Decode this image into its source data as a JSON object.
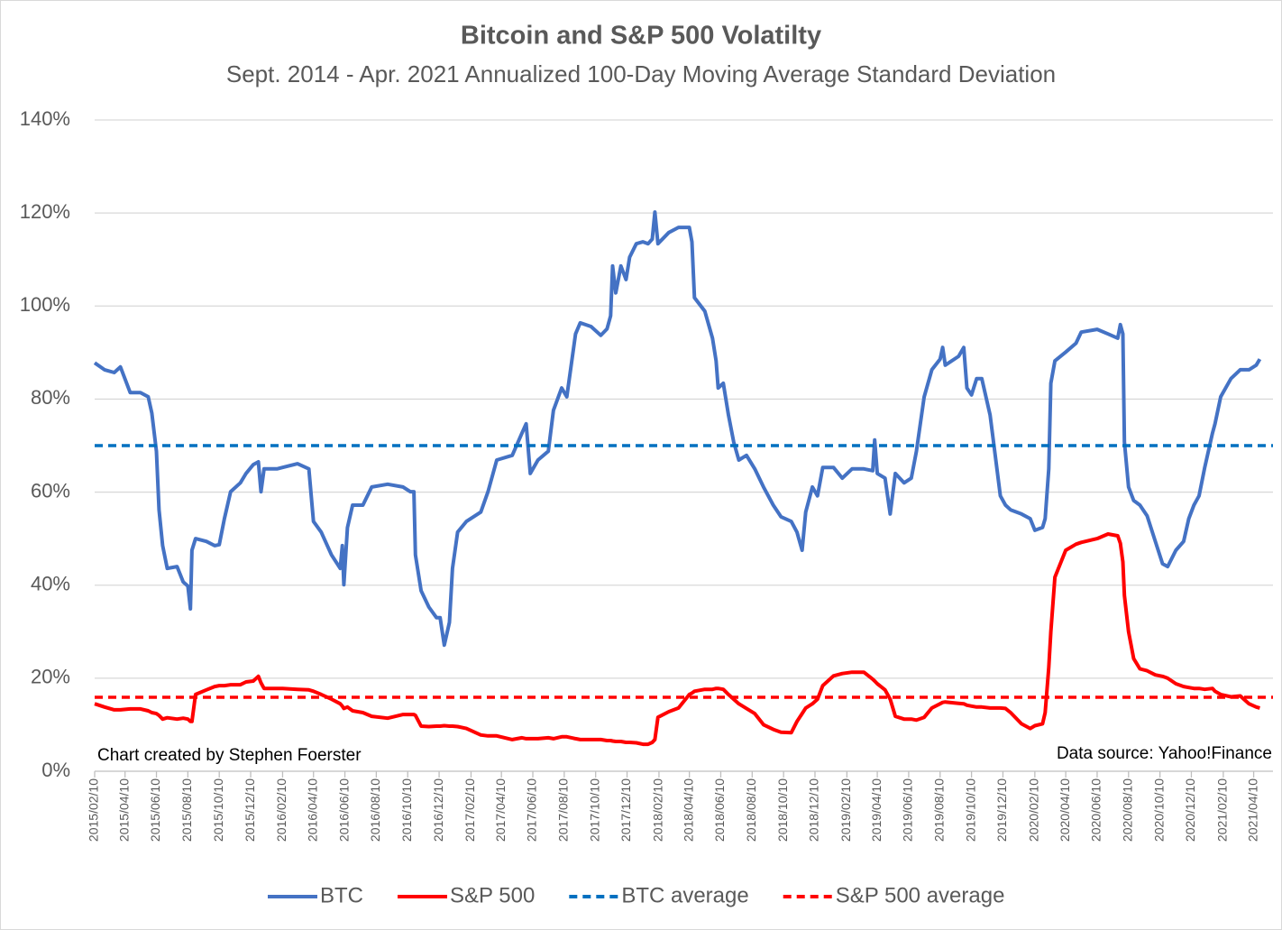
{
  "chart_data": {
    "type": "line",
    "title": "Bitcoin and S&P 500 Volatilty",
    "subtitle": "Sept. 2014 - Apr. 2021 Annualized 100-Day Moving Average Standard Deviation",
    "annotations": [
      "Chart created by Stephen Foerster",
      "Data source: Yahoo!Finance"
    ],
    "grid": true,
    "legend": "bottom",
    "xlim": [
      "2015/02/10",
      "2021/04/23"
    ],
    "xticks": [
      "2015/02/10",
      "2015/04/10",
      "2015/06/10",
      "2015/08/10",
      "2015/10/10",
      "2015/12/10",
      "2016/02/10",
      "2016/04/10",
      "2016/06/10",
      "2016/08/10",
      "2016/10/10",
      "2016/12/10",
      "2017/02/10",
      "2017/04/10",
      "2017/06/10",
      "2017/08/10",
      "2017/10/10",
      "2017/12/10",
      "2018/02/10",
      "2018/04/10",
      "2018/06/10",
      "2018/08/10",
      "2018/10/10",
      "2018/12/10",
      "2019/02/10",
      "2019/04/10",
      "2019/06/10",
      "2019/08/10",
      "2019/10/10",
      "2019/12/10",
      "2020/02/10",
      "2020/04/10",
      "2020/06/10",
      "2020/08/10",
      "2020/10/10",
      "2020/12/10",
      "2021/02/10",
      "2021/04/10"
    ],
    "ylim": [
      0,
      140
    ],
    "yticks": [
      {
        "value": 0,
        "label": "0%"
      },
      {
        "value": 20,
        "label": "20%"
      },
      {
        "value": 40,
        "label": "40%"
      },
      {
        "value": 60,
        "label": "60%"
      },
      {
        "value": 80,
        "label": "80%"
      },
      {
        "value": 100,
        "label": "100%"
      },
      {
        "value": 120,
        "label": "120%"
      },
      {
        "value": 140,
        "label": "140%"
      }
    ],
    "x": [
      "2015/02/10",
      "2015/03/01",
      "2015/03/20",
      "2015/04/01",
      "2015/04/20",
      "2015/05/10",
      "2015/05/25",
      "2015/06/01",
      "2015/06/10",
      "2015/06/15",
      "2015/06/22",
      "2015/07/01",
      "2015/07/20",
      "2015/08/01",
      "2015/08/10",
      "2015/08/15",
      "2015/08/18",
      "2015/08/25",
      "2015/09/15",
      "2015/10/01",
      "2015/10/10",
      "2015/10/20",
      "2015/11/01",
      "2015/11/20",
      "2015/12/01",
      "2015/12/15",
      "2015/12/25",
      "2015/12/30",
      "2016/01/05",
      "2016/01/30",
      "2016/02/10",
      "2016/03/10",
      "2016/04/01",
      "2016/04/10",
      "2016/04/25",
      "2016/05/15",
      "2016/06/01",
      "2016/06/05",
      "2016/06/08",
      "2016/06/15",
      "2016/06/25",
      "2016/07/15",
      "2016/08/01",
      "2016/09/01",
      "2016/10/01",
      "2016/10/15",
      "2016/10/22",
      "2016/10/25",
      "2016/11/05",
      "2016/11/20",
      "2016/12/05",
      "2016/12/12",
      "2016/12/20",
      "2016/12/30",
      "2017/01/05",
      "2017/01/15",
      "2017/02/01",
      "2017/03/01",
      "2017/03/15",
      "2017/04/01",
      "2017/05/01",
      "2017/05/20",
      "2017/05/28",
      "2017/06/05",
      "2017/06/20",
      "2017/07/10",
      "2017/07/20",
      "2017/08/05",
      "2017/08/15",
      "2017/09/01",
      "2017/09/10",
      "2017/10/01",
      "2017/10/20",
      "2017/11/01",
      "2017/11/08",
      "2017/11/12",
      "2017/11/18",
      "2017/11/28",
      "2017/12/08",
      "2017/12/15",
      "2017/12/28",
      "2018/01/10",
      "2018/01/20",
      "2018/01/28",
      "2018/02/02",
      "2018/02/08",
      "2018/03/01",
      "2018/03/20",
      "2018/04/10",
      "2018/04/15",
      "2018/04/20",
      "2018/05/10",
      "2018/05/25",
      "2018/06/01",
      "2018/06/05",
      "2018/06/15",
      "2018/06/25",
      "2018/07/05",
      "2018/07/15",
      "2018/07/30",
      "2018/08/15",
      "2018/09/01",
      "2018/09/20",
      "2018/10/05",
      "2018/10/25",
      "2018/11/05",
      "2018/11/15",
      "2018/11/22",
      "2018/12/05",
      "2018/12/15",
      "2018/12/25",
      "2019/01/15",
      "2019/02/01",
      "2019/02/20",
      "2019/03/15",
      "2019/04/01",
      "2019/04/05",
      "2019/04/10",
      "2019/04/25",
      "2019/05/05",
      "2019/05/15",
      "2019/06/01",
      "2019/06/15",
      "2019/06/25",
      "2019/07/10",
      "2019/07/25",
      "2019/08/10",
      "2019/08/15",
      "2019/08/20",
      "2019/09/15",
      "2019/09/25",
      "2019/10/01",
      "2019/10/10",
      "2019/10/20",
      "2019/10/30",
      "2019/11/15",
      "2019/11/25",
      "2019/12/05",
      "2019/12/15",
      "2019/12/25",
      "2020/01/15",
      "2020/02/01",
      "2020/02/10",
      "2020/02/25",
      "2020/03/01",
      "2020/03/08",
      "2020/03/12",
      "2020/03/20",
      "2020/04/10",
      "2020/04/30",
      "2020/05/10",
      "2020/06/10",
      "2020/07/01",
      "2020/07/20",
      "2020/07/25",
      "2020/07/30",
      "2020/08/02",
      "2020/08/10",
      "2020/08/20",
      "2020/09/01",
      "2020/09/15",
      "2020/10/01",
      "2020/10/15",
      "2020/10/25",
      "2020/11/10",
      "2020/11/25",
      "2020/12/05",
      "2020/12/15",
      "2020/12/25",
      "2021/01/05",
      "2021/01/20",
      "2021/01/25",
      "2021/02/05",
      "2021/02/25",
      "2021/03/15",
      "2021/04/01",
      "2021/04/15",
      "2021/04/22"
    ],
    "series": [
      {
        "name": "BTC",
        "color": "#4472c4",
        "values": [
          87.8,
          86.3,
          85.7,
          86.9,
          81.4,
          81.4,
          80.5,
          77,
          68.8,
          56.2,
          48.5,
          43.6,
          44,
          40.7,
          39.8,
          34.9,
          47.5,
          50,
          49.4,
          48.5,
          48.7,
          54.3,
          60.1,
          62,
          64,
          65.9,
          66.5,
          60.1,
          65,
          65,
          65.3,
          66.1,
          65,
          53.7,
          51.4,
          46.5,
          43.6,
          48.5,
          40.1,
          52.4,
          57.2,
          57.2,
          61.1,
          61.7,
          61.1,
          60.1,
          60.1,
          46.5,
          38.8,
          35.3,
          33,
          33,
          27.1,
          32,
          43.6,
          51.4,
          53.7,
          55.7,
          60.1,
          66.9,
          67.9,
          72.7,
          74.7,
          64,
          66.9,
          68.8,
          77.6,
          82.4,
          80.5,
          94,
          96.4,
          95.6,
          93.7,
          95.1,
          97.9,
          108.6,
          102.8,
          108.6,
          105.7,
          110.5,
          113.4,
          113.8,
          113.4,
          114.4,
          120.2,
          113.4,
          115.8,
          116.9,
          116.9,
          113.8,
          101.8,
          98.9,
          93.1,
          88.2,
          82.4,
          83.4,
          76.6,
          70.8,
          66.9,
          67.9,
          65,
          61.1,
          57.2,
          54.7,
          53.7,
          51.4,
          47.5,
          55.7,
          61.1,
          59.2,
          65.3,
          65.3,
          63,
          65,
          65,
          64.6,
          71.2,
          64,
          63,
          55.3,
          64,
          62,
          63,
          68.8,
          80.5,
          86.3,
          88.6,
          91.1,
          87.3,
          89.2,
          91.1,
          82.4,
          80.9,
          84.4,
          84.4,
          76.6,
          67.9,
          59.2,
          57.2,
          56.2,
          55.3,
          54.3,
          51.8,
          52.4,
          54.3,
          65,
          83.4,
          88.2,
          90.1,
          92,
          94.4,
          95,
          94,
          93.1,
          96,
          94,
          70.8,
          61.1,
          58.2,
          57.2,
          54.9,
          49.4,
          44.6,
          44,
          47.5,
          49.4,
          54.3,
          57.2,
          59.2,
          65.3,
          72.7,
          74.7,
          80.5,
          84.4,
          86.3,
          86.3,
          87.3,
          88.6
        ]
      },
      {
        "name": "S&P 500",
        "color": "#ff0000",
        "values": [
          14.5,
          13.8,
          13.2,
          13.2,
          13.4,
          13.4,
          13,
          12.6,
          12.4,
          12,
          11.2,
          11.5,
          11.2,
          11.4,
          11.2,
          10.7,
          10.7,
          16.5,
          17.5,
          18.2,
          18.4,
          18.4,
          18.6,
          18.6,
          19.2,
          19.4,
          20.4,
          19,
          17.8,
          17.8,
          17.8,
          17.6,
          17.5,
          17.2,
          16.5,
          15.5,
          14.5,
          14,
          13.5,
          13.8,
          13,
          12.6,
          11.8,
          11.4,
          12.2,
          12.2,
          12.2,
          12,
          9.7,
          9.6,
          9.7,
          9.7,
          9.8,
          9.7,
          9.7,
          9.6,
          9.2,
          7.8,
          7.6,
          7.6,
          6.8,
          7.2,
          7,
          7,
          7,
          7.2,
          7,
          7.4,
          7.4,
          7,
          6.8,
          6.8,
          6.8,
          6.6,
          6.6,
          6.5,
          6.4,
          6.4,
          6.2,
          6.2,
          6.1,
          5.8,
          5.8,
          6.2,
          6.8,
          11.6,
          12.8,
          13.6,
          16.5,
          16.8,
          17.2,
          17.6,
          17.6,
          17.8,
          17.8,
          17.6,
          16.5,
          15.5,
          14.5,
          13.5,
          12.4,
          10,
          9,
          8.4,
          8.3,
          10.7,
          12.4,
          13.6,
          14.5,
          15.5,
          18.4,
          20.5,
          21,
          21.3,
          21.3,
          19.8,
          19.4,
          18.8,
          17.5,
          15.5,
          11.8,
          11.2,
          11.2,
          11,
          11.6,
          13.6,
          14.5,
          14.8,
          14.9,
          14.6,
          14.5,
          14.2,
          14,
          13.8,
          13.8,
          13.6,
          13.6,
          13.6,
          13.5,
          12.6,
          10.2,
          9.2,
          9.8,
          10.2,
          12.6,
          22.3,
          30,
          41.7,
          47.5,
          48.8,
          49.2,
          50,
          51,
          50.6,
          49,
          45,
          37.8,
          30,
          24.2,
          22,
          21.6,
          20.7,
          20.4,
          20,
          18.8,
          18.2,
          18,
          17.8,
          17.8,
          17.6,
          17.8,
          17.2,
          16.5,
          16,
          16.2,
          14.5,
          13.8,
          13.6
        ]
      },
      {
        "name": "BTC average",
        "color": "#0070c0",
        "dash": true,
        "value": 70
      },
      {
        "name": "S&P 500 average",
        "color": "#ff0000",
        "dash": true,
        "value": 15.9
      }
    ]
  }
}
